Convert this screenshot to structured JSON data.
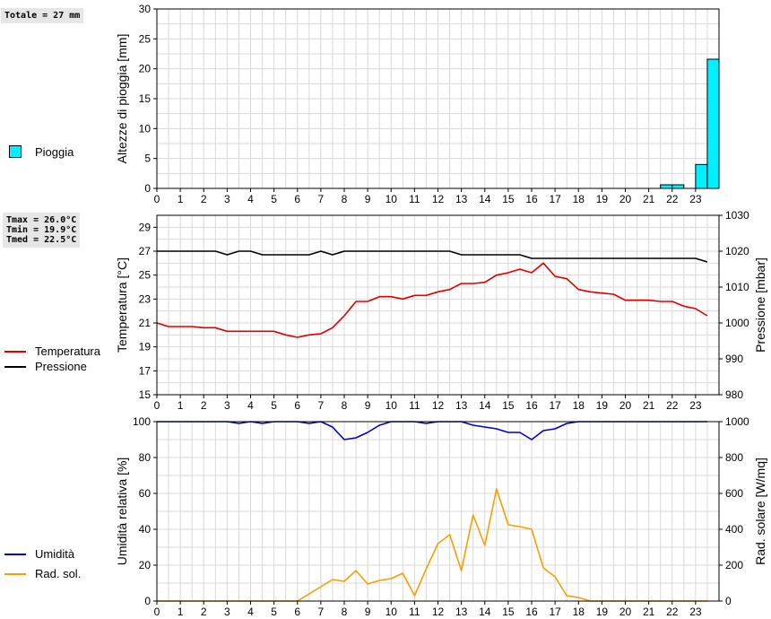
{
  "totals": {
    "rain": "Totale = 27 mm"
  },
  "temp_stats": {
    "tmax": "Tmax = 26.0°C",
    "tmin": "Tmin = 19.9°C",
    "tmed": "Tmed = 22.5°C"
  },
  "legends": {
    "rain": "Pioggia",
    "temperature": "Temperatura",
    "pressure": "Pressione",
    "humidity": "Umidità",
    "radiation": "Rad. sol."
  },
  "colors": {
    "rain": "#00f0ff",
    "temperature": "#dd0000",
    "pressure": "#000000",
    "humidity": "#0000cc",
    "radiation": "#f5a000",
    "grid": "#d8d8d8"
  },
  "chart_data": [
    {
      "type": "bar",
      "ylabel": "Altezze di pioggia [mm]",
      "ylim": [
        0,
        30
      ],
      "yticks": [
        0,
        5,
        10,
        15,
        20,
        25,
        30
      ],
      "xticks": [
        "0",
        "1",
        "2",
        "3",
        "4",
        "5",
        "6",
        "7",
        "8",
        "9",
        "10",
        "11",
        "12",
        "13",
        "14",
        "15",
        "16",
        "17",
        "18",
        "19",
        "20",
        "21",
        "22",
        "23"
      ],
      "xlim": [
        0,
        24
      ],
      "bar_width": 0.5,
      "series": [
        {
          "name": "Pioggia",
          "x": [
            21.5,
            22.0,
            23.0,
            23.5
          ],
          "values": [
            0.6,
            0.6,
            4.0,
            21.6
          ]
        }
      ]
    },
    {
      "type": "line",
      "ylabel": "Temperatura [°C]",
      "y2label": "Pressione [mbar]",
      "ylim": [
        15,
        30
      ],
      "yticks": [
        15,
        17,
        19,
        21,
        23,
        25,
        27,
        29
      ],
      "y2lim": [
        980,
        1030
      ],
      "y2ticks": [
        980,
        990,
        1000,
        1010,
        1020,
        1030
      ],
      "xticks": [
        "0",
        "1",
        "2",
        "3",
        "4",
        "5",
        "6",
        "7",
        "8",
        "9",
        "10",
        "11",
        "12",
        "13",
        "14",
        "15",
        "16",
        "17",
        "18",
        "19",
        "20",
        "21",
        "22",
        "23"
      ],
      "xlim": [
        0,
        24
      ],
      "series": [
        {
          "name": "Temperatura",
          "axis": "left",
          "x": [
            0,
            0.5,
            1.5,
            2,
            2.5,
            3,
            3.5,
            4,
            4.5,
            5,
            5.5,
            6,
            6.5,
            7,
            7.5,
            8,
            8.5,
            9,
            9.5,
            10,
            10.5,
            11,
            11.5,
            12,
            12.5,
            13,
            13.5,
            14,
            14.5,
            15,
            15.5,
            16,
            16.5,
            17,
            17.5,
            18,
            18.5,
            19,
            19.5,
            20,
            20.5,
            21,
            21.5,
            22,
            22.5,
            23,
            23.5
          ],
          "values": [
            21.0,
            20.7,
            20.7,
            20.6,
            20.6,
            20.3,
            20.3,
            20.3,
            20.3,
            20.3,
            20.0,
            19.8,
            20.0,
            20.1,
            20.6,
            21.6,
            22.8,
            22.8,
            23.2,
            23.2,
            23.0,
            23.3,
            23.3,
            23.6,
            23.8,
            24.3,
            24.3,
            24.4,
            25.0,
            25.2,
            25.5,
            25.2,
            26.0,
            24.9,
            24.7,
            23.8,
            23.6,
            23.5,
            23.4,
            22.9,
            22.9,
            22.9,
            22.8,
            22.8,
            22.4,
            22.2,
            21.6
          ]
        },
        {
          "name": "Pressione",
          "axis": "right",
          "x": [
            0,
            0.5,
            1,
            1.5,
            2,
            2.5,
            3,
            3.5,
            4,
            4.5,
            5,
            5.5,
            6,
            6.5,
            7,
            7.5,
            8,
            8.5,
            9,
            9.5,
            10,
            10.5,
            11,
            11.5,
            12,
            12.5,
            13,
            13.5,
            14,
            14.5,
            15,
            15.5,
            16,
            16.5,
            17,
            17.5,
            18,
            18.5,
            19,
            19.5,
            20,
            20.5,
            21,
            21.5,
            22,
            22.5,
            23,
            23.5
          ],
          "values": [
            1020,
            1020,
            1020,
            1020,
            1020,
            1020,
            1019,
            1020,
            1020,
            1019,
            1019,
            1019,
            1019,
            1019,
            1020,
            1019,
            1020,
            1020,
            1020,
            1020,
            1020,
            1020,
            1020,
            1020,
            1020,
            1020,
            1019,
            1019,
            1019,
            1019,
            1019,
            1019,
            1018,
            1018,
            1018,
            1018,
            1018,
            1018,
            1018,
            1018,
            1018,
            1018,
            1018,
            1018,
            1018,
            1018,
            1018,
            1017
          ]
        }
      ]
    },
    {
      "type": "line",
      "ylabel": "Umidità relativa [%]",
      "y2label": "Rad. solare [W/mq]",
      "ylim": [
        0,
        100
      ],
      "yticks": [
        0,
        20,
        40,
        60,
        80,
        100
      ],
      "y2lim": [
        0,
        1000
      ],
      "y2ticks": [
        0,
        200,
        400,
        600,
        800,
        1000
      ],
      "xticks": [
        "0",
        "1",
        "2",
        "3",
        "4",
        "5",
        "6",
        "7",
        "8",
        "9",
        "10",
        "11",
        "12",
        "13",
        "14",
        "15",
        "16",
        "17",
        "18",
        "19",
        "20",
        "21",
        "22",
        "23"
      ],
      "xlim": [
        0,
        24
      ],
      "series": [
        {
          "name": "Umidità",
          "axis": "left",
          "x": [
            0,
            1,
            2,
            3,
            3.5,
            4,
            4.5,
            5,
            6,
            6.5,
            7,
            7.5,
            8,
            8.5,
            9,
            9.5,
            10,
            11,
            11.5,
            12,
            13,
            13.5,
            14,
            14.5,
            15,
            15.5,
            16,
            16.5,
            17,
            17.5,
            18,
            19,
            20,
            21,
            22,
            23,
            23.5
          ],
          "values": [
            100,
            100,
            100,
            100,
            99,
            100,
            99,
            100,
            100,
            99,
            100,
            97,
            90,
            91,
            94,
            98,
            100,
            100,
            99,
            100,
            100,
            98,
            97,
            96,
            94,
            94,
            90,
            95,
            96,
            99,
            100,
            100,
            100,
            100,
            100,
            100,
            100
          ]
        },
        {
          "name": "Rad. sol.",
          "axis": "right",
          "x": [
            0,
            1,
            2,
            3,
            4,
            5,
            6,
            6.5,
            7,
            7.5,
            8,
            8.5,
            9,
            9.5,
            10,
            10.5,
            11,
            11.5,
            12,
            12.5,
            13,
            13.5,
            14,
            14.5,
            15,
            15.5,
            16,
            16.5,
            17,
            17.5,
            18,
            18.5,
            19,
            20,
            21,
            22,
            23,
            23.5
          ],
          "values": [
            0,
            0,
            0,
            0,
            0,
            0,
            0,
            40,
            80,
            120,
            110,
            170,
            95,
            115,
            125,
            155,
            30,
            180,
            320,
            370,
            170,
            480,
            310,
            625,
            425,
            415,
            400,
            185,
            135,
            30,
            20,
            0,
            0,
            0,
            0,
            0,
            0,
            0
          ]
        }
      ]
    }
  ]
}
